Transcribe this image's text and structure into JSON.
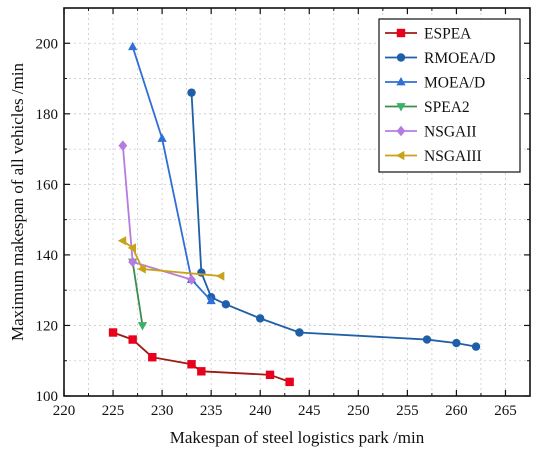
{
  "chart_data": {
    "type": "line",
    "title": "",
    "xlabel": "Makespan of steel logistics park /min",
    "ylabel": "Maximum makespan of all vehicles /min",
    "xlim": [
      220,
      267.5
    ],
    "ylim": [
      100,
      210
    ],
    "xticks": [
      220,
      225,
      230,
      235,
      240,
      245,
      250,
      255,
      260,
      265
    ],
    "yticks": [
      100,
      120,
      140,
      160,
      180,
      200
    ],
    "grid": true,
    "legend_position": "top-right",
    "series": [
      {
        "name": "ESPEA",
        "color": "#e8001c",
        "line_color": "#9b1b12",
        "marker": "square",
        "x": [
          225,
          227,
          229,
          233,
          234,
          241,
          243
        ],
        "y": [
          118,
          116,
          111,
          109,
          107,
          106,
          104
        ]
      },
      {
        "name": "RMOEA/D",
        "color": "#1f5fa8",
        "line_color": "#1f5fa8",
        "marker": "circle",
        "x": [
          233,
          234,
          235,
          236.5,
          240,
          244,
          257,
          260,
          262
        ],
        "y": [
          186,
          135,
          128,
          126,
          122,
          118,
          116,
          115,
          114
        ]
      },
      {
        "name": "MOEA/D",
        "color": "#2f6fd6",
        "line_color": "#2f6fd6",
        "marker": "triangle-up",
        "x": [
          227,
          230,
          233,
          235
        ],
        "y": [
          199,
          173,
          133,
          127
        ]
      },
      {
        "name": "SPEA2",
        "color": "#3cb06a",
        "line_color": "#3c8c4e",
        "marker": "triangle-down",
        "x": [
          227,
          228
        ],
        "y": [
          138,
          120
        ]
      },
      {
        "name": "NSGAII",
        "color": "#b77be0",
        "line_color": "#b77be0",
        "marker": "diamond",
        "x": [
          226,
          227,
          233
        ],
        "y": [
          171,
          138,
          133
        ]
      },
      {
        "name": "NSGAIII",
        "color": "#c9a21a",
        "line_color": "#c9a21a",
        "marker": "triangle-left",
        "x": [
          226,
          227,
          228,
          236
        ],
        "y": [
          144,
          142,
          136,
          134
        ]
      }
    ]
  }
}
